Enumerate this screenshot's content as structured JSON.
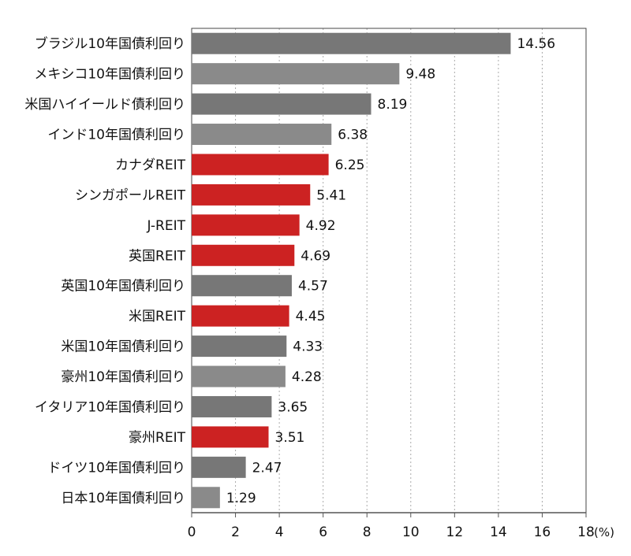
{
  "colors": {
    "bond": "#777777",
    "bond_alt": "#8a8a8a",
    "reit": "#cc2222",
    "grid": "#aaaaaa",
    "axis": "#555555",
    "frame": "#444444"
  },
  "chart_data": {
    "type": "bar",
    "orientation": "horizontal",
    "title": "",
    "xlabel": "",
    "ylabel": "",
    "unit": "(%)",
    "xlim": [
      0,
      18
    ],
    "xticks": [
      0,
      2,
      4,
      6,
      8,
      10,
      12,
      14,
      16,
      18
    ],
    "grid": "vertical dotted",
    "categories": [
      "ブラジル10年国債利回り",
      "メキシコ10年国債利回り",
      "米国ハイイールド債利回り",
      "インド10年国債利回り",
      "カナダREIT",
      "シンガポールREIT",
      "J-REIT",
      "英国REIT",
      "英国10年国債利回り",
      "米国REIT",
      "米国10年国債利回り",
      "豪州10年国債利回り",
      "イタリア10年国債利回り",
      "豪州REIT",
      "ドイツ10年国債利回り",
      "日本10年国債利回り"
    ],
    "values": [
      14.56,
      9.48,
      8.19,
      6.38,
      6.25,
      5.41,
      4.92,
      4.69,
      4.57,
      4.45,
      4.33,
      4.28,
      3.65,
      3.51,
      2.47,
      1.29
    ],
    "value_labels": [
      "14.56",
      "9.48",
      "8.19",
      "6.38",
      "6.25",
      "5.41",
      "4.92",
      "4.69",
      "4.57",
      "4.45",
      "4.33",
      "4.28",
      "3.65",
      "3.51",
      "2.47",
      "1.29"
    ],
    "groups": [
      "bond",
      "bond",
      "bond",
      "bond",
      "reit",
      "reit",
      "reit",
      "reit",
      "bond",
      "reit",
      "bond",
      "bond",
      "bond",
      "reit",
      "bond",
      "bond"
    ]
  }
}
